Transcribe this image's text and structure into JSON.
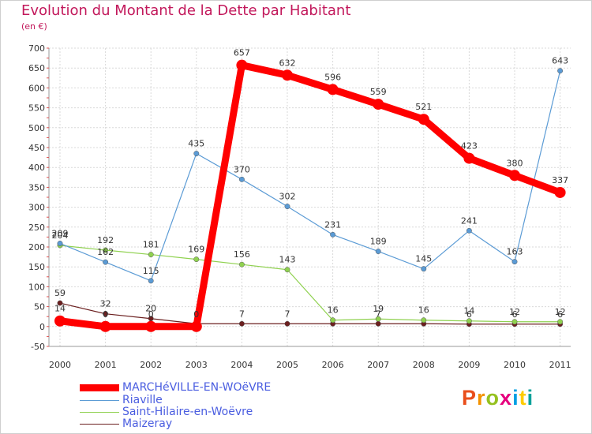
{
  "title": "Evolution du Montant de la Dette par Habitant",
  "subtitle": "(en €)",
  "logo": {
    "text": "Proxiti",
    "colors": [
      "#e94e1b",
      "#f39200",
      "#95c11f",
      "#e6007e",
      "#009fe3",
      "#ffcc00",
      "#00a19a"
    ]
  },
  "chart_data": {
    "type": "line",
    "title": "Evolution du Montant de la Dette par Habitant",
    "ylabel": "(en €)",
    "ylim": [
      -50,
      700
    ],
    "yticks": [
      "-50",
      "0",
      "50",
      "100",
      "150",
      "200",
      "250",
      "300",
      "350",
      "400",
      "450",
      "500",
      "550",
      "600",
      "650",
      "700"
    ],
    "categories": [
      "2000",
      "2001",
      "2002",
      "2003",
      "2004",
      "2005",
      "2006",
      "2007",
      "2008",
      "2009",
      "2010",
      "2011"
    ],
    "grid": true,
    "legend_position": "bottom-left",
    "series": [
      {
        "name": "Maizeray",
        "color": "#6b1f1f",
        "values": [
          59,
          32,
          20,
          7,
          7,
          7,
          7,
          7,
          7,
          6,
          6,
          6
        ],
        "labels": [
          "59",
          "32",
          "20",
          "",
          "7",
          "7",
          "",
          "7",
          "",
          "6",
          "6",
          "6"
        ]
      },
      {
        "name": "Saint-Hilaire-en-Woëvre",
        "color": "#8fd14f",
        "values": [
          204,
          192,
          181,
          169,
          156,
          143,
          16,
          19,
          16,
          14,
          12,
          12
        ],
        "labels": [
          "204",
          "192",
          "181",
          "169",
          "156",
          "143",
          "16",
          "19",
          "16",
          "14",
          "12",
          "12"
        ]
      },
      {
        "name": "Riaville",
        "color": "#5b9bd5",
        "values": [
          209,
          162,
          115,
          435,
          370,
          302,
          231,
          189,
          145,
          241,
          163,
          643
        ],
        "labels": [
          "209",
          "162",
          "115",
          "435",
          "370",
          "302",
          "231",
          "189",
          "145",
          "241",
          "163",
          "643"
        ]
      },
      {
        "name": "MARCHéVILLE-EN-WOëVRE",
        "color": "#ff0000",
        "values": [
          14,
          0,
          0,
          0,
          657,
          632,
          596,
          559,
          521,
          423,
          380,
          337
        ],
        "labels": [
          "14",
          "0",
          "0",
          "0",
          "657",
          "632",
          "596",
          "559",
          "521",
          "423",
          "380",
          "337"
        ]
      }
    ]
  },
  "legend": [
    {
      "label": "MARCHéVILLE-EN-WOëVRE",
      "color": "#ff0000"
    },
    {
      "label": "Riaville",
      "color": "#5b9bd5"
    },
    {
      "label": "Saint-Hilaire-en-Woëvre",
      "color": "#8fd14f"
    },
    {
      "label": "Maizeray",
      "color": "#6b1f1f"
    }
  ]
}
